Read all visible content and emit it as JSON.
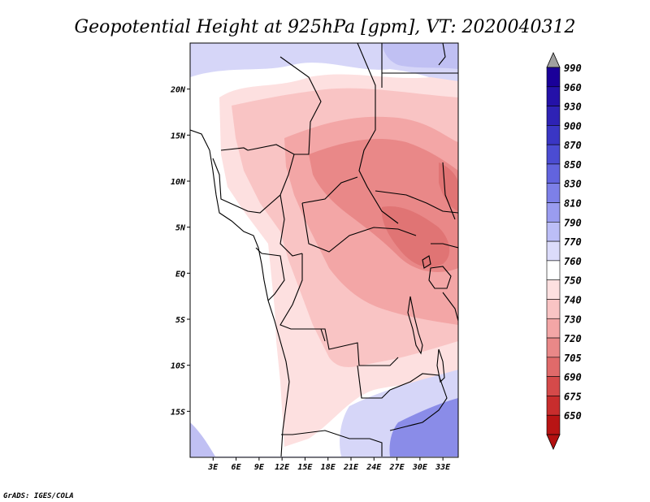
{
  "title": "Geopotential Height at 925hPa [gpm], VT: 2020040312",
  "credit": "GrADS: IGES/COLA",
  "map": {
    "lon_range": [
      0,
      35
    ],
    "lat_range": [
      -20,
      25
    ],
    "lat_labels": [
      {
        "lat": 20,
        "label": "20N"
      },
      {
        "lat": 15,
        "label": "15N"
      },
      {
        "lat": 10,
        "label": "10N"
      },
      {
        "lat": 5,
        "label": "5N"
      },
      {
        "lat": 0,
        "label": "EQ"
      },
      {
        "lat": -5,
        "label": "5S"
      },
      {
        "lat": -10,
        "label": "10S"
      },
      {
        "lat": -15,
        "label": "15S"
      }
    ],
    "lon_labels": [
      {
        "lon": 3,
        "label": "3E"
      },
      {
        "lon": 6,
        "label": "6E"
      },
      {
        "lon": 9,
        "label": "9E"
      },
      {
        "lon": 12,
        "label": "12E"
      },
      {
        "lon": 15,
        "label": "15E"
      },
      {
        "lon": 18,
        "label": "18E"
      },
      {
        "lon": 21,
        "label": "21E"
      },
      {
        "lon": 24,
        "label": "24E"
      },
      {
        "lon": 27,
        "label": "27E"
      },
      {
        "lon": 30,
        "label": "30E"
      },
      {
        "lon": 33,
        "label": "33E"
      }
    ]
  },
  "colorbar": {
    "levels": [
      {
        "label": "990",
        "color": "#1a0099"
      },
      {
        "label": "960",
        "color": "#2411a8"
      },
      {
        "label": "930",
        "color": "#2e22b5"
      },
      {
        "label": "900",
        "color": "#3a36c4"
      },
      {
        "label": "870",
        "color": "#4b4cd2"
      },
      {
        "label": "850",
        "color": "#6264de"
      },
      {
        "label": "830",
        "color": "#7d80e8"
      },
      {
        "label": "810",
        "color": "#9a9cf0"
      },
      {
        "label": "790",
        "color": "#bcbef7"
      },
      {
        "label": "770",
        "color": "#dcdcfb"
      },
      {
        "label": "760",
        "color": "#ffffff"
      },
      {
        "label": "750",
        "color": "#fde0e0"
      },
      {
        "label": "740",
        "color": "#f9c4c4"
      },
      {
        "label": "730",
        "color": "#f3a6a6"
      },
      {
        "label": "720",
        "color": "#e98888"
      },
      {
        "label": "705",
        "color": "#e06a6a"
      },
      {
        "label": "690",
        "color": "#d54a4a"
      },
      {
        "label": "675",
        "color": "#c82d2d"
      },
      {
        "label": "650",
        "color": "#b81414"
      }
    ],
    "top_arrow_color": "#a0a0a0",
    "bottom_arrow_color": "#b31010"
  },
  "field_colors": {
    "ocean_high": "#d6d6f8",
    "ocean_highest": "#c0c0f3",
    "deep_blue": "#8a8ce8",
    "white": "#ffffff",
    "pale_pink": "#fde0e0",
    "light_pink": "#f9c4c4",
    "mid_pink": "#f3a6a6",
    "deep_pink": "#e98888",
    "darkest": "#e07474"
  }
}
